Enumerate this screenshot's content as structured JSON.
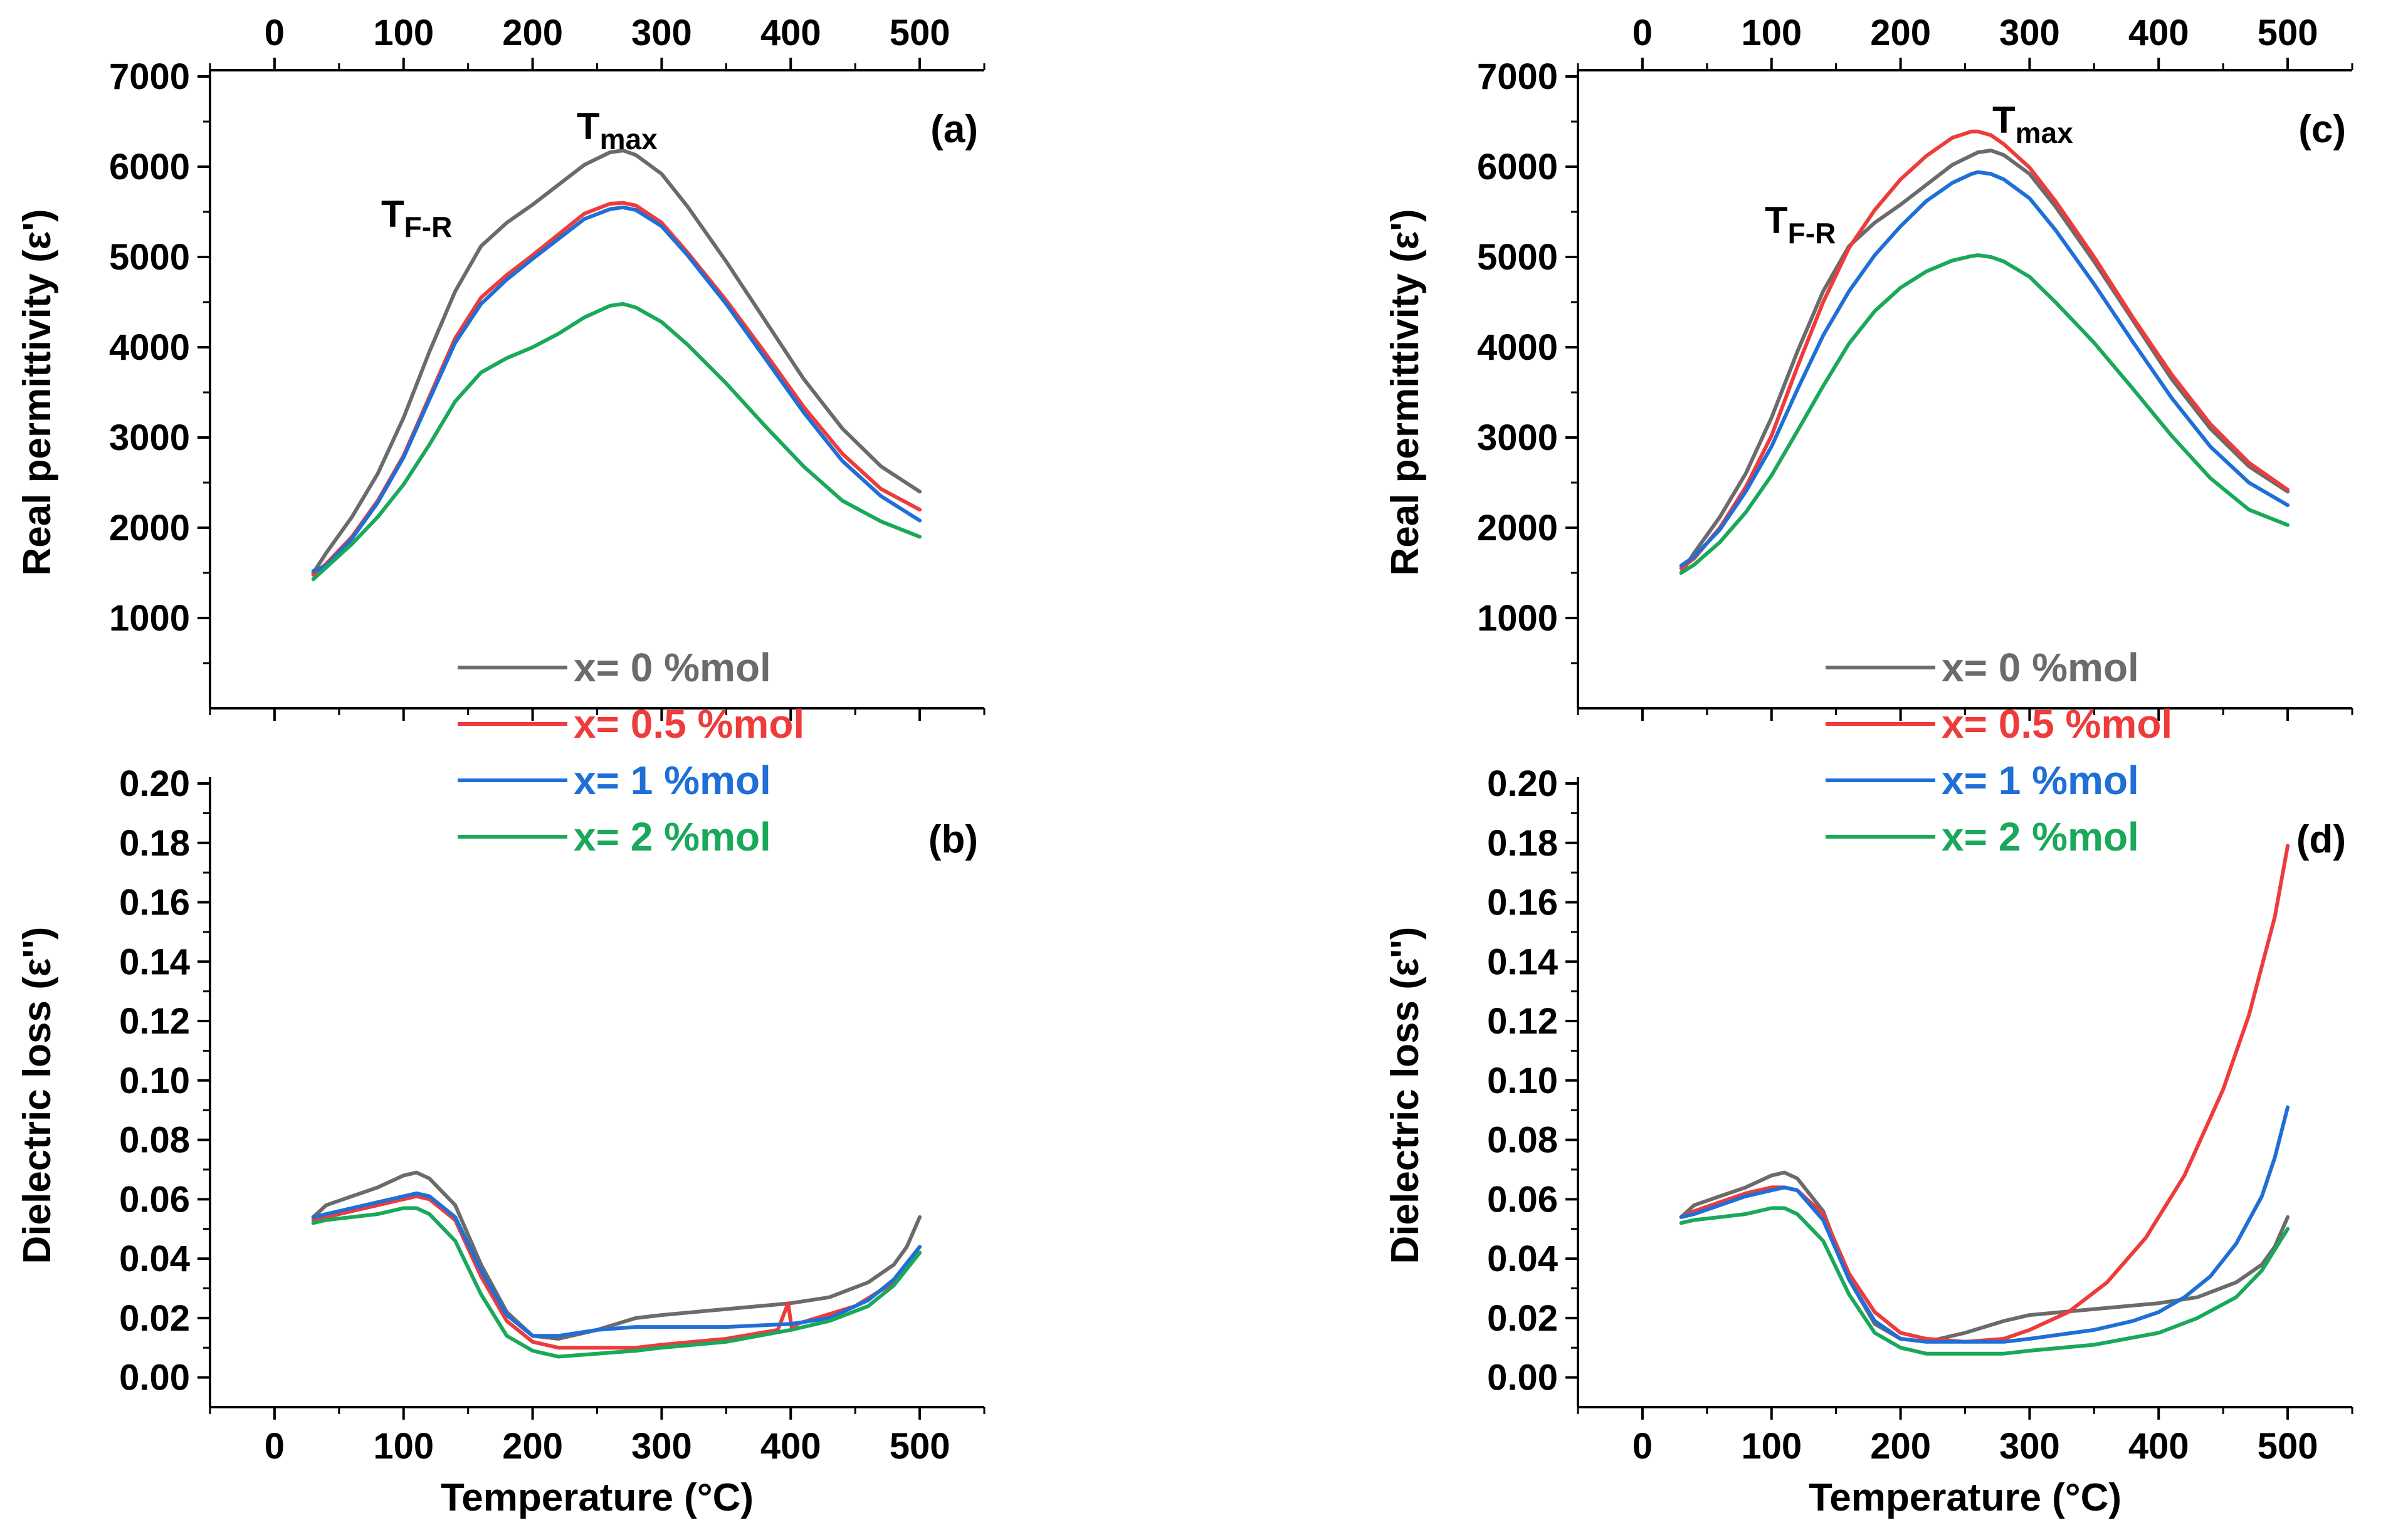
{
  "figure": {
    "colors": {
      "x0": "#6b6b6b",
      "x05": "#ee3b3b",
      "x1": "#1f6fd6",
      "x2": "#1aa85a",
      "axis": "#000000"
    },
    "legend": [
      {
        "label": "x= 0 %mol",
        "color": "#6b6b6b"
      },
      {
        "label": "x= 0.5 %mol",
        "color": "#ee3b3b"
      },
      {
        "label": "x= 1 %mol",
        "color": "#1f6fd6"
      },
      {
        "label": "x= 2 %mol",
        "color": "#1aa85a"
      }
    ],
    "annotations": {
      "tmax_main": "T",
      "tmax_sub": "max",
      "tfr_main": "T",
      "tfr_sub": "F-R"
    }
  },
  "chart_data": [
    {
      "id": "a",
      "type": "line",
      "panel_label": "(a)",
      "xlabel": "",
      "ylabel": "Real permittivity (ε')",
      "xlim": [
        -50,
        550
      ],
      "ylim": [
        0,
        7000
      ],
      "xticks": [
        0,
        100,
        200,
        300,
        400,
        500
      ],
      "top_axis_ticks": [
        0,
        100,
        200,
        300,
        400,
        500
      ],
      "yticks": [
        1000,
        2000,
        3000,
        4000,
        5000,
        6000,
        7000
      ],
      "series": [
        {
          "name": "x= 0 %mol",
          "color": "#6b6b6b",
          "x": [
            30,
            40,
            60,
            80,
            100,
            120,
            140,
            160,
            180,
            200,
            220,
            240,
            260,
            270,
            280,
            300,
            320,
            350,
            380,
            410,
            440,
            470,
            500
          ],
          "y": [
            1500,
            1720,
            2120,
            2600,
            3220,
            3950,
            4620,
            5120,
            5380,
            5580,
            5800,
            6020,
            6160,
            6180,
            6130,
            5920,
            5560,
            4950,
            4300,
            3650,
            3100,
            2680,
            2400
          ]
        },
        {
          "name": "x= 0.5 %mol",
          "color": "#ee3b3b",
          "x": [
            30,
            40,
            60,
            80,
            100,
            120,
            140,
            160,
            180,
            200,
            220,
            240,
            260,
            270,
            280,
            300,
            320,
            350,
            380,
            410,
            440,
            470,
            500
          ],
          "y": [
            1480,
            1600,
            1900,
            2300,
            2800,
            3450,
            4100,
            4550,
            4800,
            5020,
            5250,
            5480,
            5590,
            5600,
            5570,
            5380,
            5050,
            4520,
            3940,
            3340,
            2820,
            2430,
            2200
          ]
        },
        {
          "name": "x= 1 %mol",
          "color": "#1f6fd6",
          "x": [
            30,
            40,
            60,
            80,
            100,
            120,
            140,
            160,
            180,
            200,
            220,
            240,
            260,
            270,
            280,
            300,
            320,
            350,
            380,
            410,
            440,
            470,
            500
          ],
          "y": [
            1520,
            1580,
            1880,
            2280,
            2780,
            3420,
            4050,
            4480,
            4750,
            4980,
            5200,
            5420,
            5530,
            5550,
            5520,
            5340,
            5020,
            4480,
            3880,
            3280,
            2740,
            2350,
            2080
          ]
        },
        {
          "name": "x= 2 %mol",
          "color": "#1aa85a",
          "x": [
            30,
            40,
            60,
            80,
            100,
            120,
            140,
            160,
            180,
            200,
            220,
            240,
            260,
            270,
            280,
            300,
            320,
            350,
            380,
            410,
            440,
            470,
            500
          ],
          "y": [
            1430,
            1560,
            1820,
            2120,
            2480,
            2920,
            3400,
            3720,
            3880,
            4000,
            4150,
            4330,
            4460,
            4480,
            4440,
            4280,
            4030,
            3600,
            3130,
            2680,
            2300,
            2070,
            1900
          ]
        }
      ]
    },
    {
      "id": "b",
      "type": "line",
      "panel_label": "(b)",
      "xlabel": "Temperature (°C)",
      "ylabel": "Dielectric loss (ε'')",
      "xlim": [
        -50,
        550
      ],
      "ylim": [
        -0.01,
        0.2
      ],
      "xticks": [
        0,
        100,
        200,
        300,
        400,
        500
      ],
      "yticks": [
        0.0,
        0.02,
        0.04,
        0.06,
        0.08,
        0.1,
        0.12,
        0.14,
        0.16,
        0.18,
        0.2
      ],
      "series": [
        {
          "name": "x= 0 %mol",
          "color": "#6b6b6b",
          "x": [
            30,
            40,
            60,
            80,
            100,
            110,
            120,
            140,
            160,
            180,
            200,
            220,
            250,
            280,
            300,
            350,
            400,
            430,
            460,
            480,
            490,
            500
          ],
          "y": [
            0.054,
            0.058,
            0.061,
            0.064,
            0.068,
            0.069,
            0.067,
            0.058,
            0.038,
            0.022,
            0.014,
            0.013,
            0.016,
            0.02,
            0.021,
            0.023,
            0.025,
            0.027,
            0.032,
            0.038,
            0.044,
            0.054
          ]
        },
        {
          "name": "x= 0.5 %mol",
          "color": "#ee3b3b",
          "x": [
            30,
            40,
            60,
            80,
            100,
            110,
            120,
            140,
            160,
            180,
            200,
            220,
            250,
            280,
            300,
            350,
            390,
            398,
            401,
            405,
            420,
            450,
            480,
            500
          ],
          "y": [
            0.053,
            0.054,
            0.056,
            0.058,
            0.06,
            0.061,
            0.06,
            0.053,
            0.034,
            0.019,
            0.012,
            0.01,
            0.01,
            0.01,
            0.011,
            0.013,
            0.016,
            0.025,
            0.016,
            0.018,
            0.02,
            0.024,
            0.032,
            0.042
          ]
        },
        {
          "name": "x= 1 %mol",
          "color": "#1f6fd6",
          "x": [
            30,
            40,
            60,
            80,
            100,
            110,
            120,
            140,
            160,
            180,
            200,
            220,
            250,
            280,
            300,
            350,
            400,
            430,
            460,
            480,
            500
          ],
          "y": [
            0.054,
            0.055,
            0.057,
            0.059,
            0.061,
            0.062,
            0.061,
            0.054,
            0.036,
            0.021,
            0.014,
            0.014,
            0.016,
            0.017,
            0.017,
            0.017,
            0.018,
            0.02,
            0.026,
            0.033,
            0.044
          ]
        },
        {
          "name": "x= 2 %mol",
          "color": "#1aa85a",
          "x": [
            30,
            40,
            60,
            80,
            100,
            110,
            120,
            140,
            160,
            180,
            200,
            220,
            250,
            280,
            300,
            350,
            400,
            430,
            460,
            480,
            500
          ],
          "y": [
            0.052,
            0.053,
            0.054,
            0.055,
            0.057,
            0.057,
            0.055,
            0.046,
            0.028,
            0.014,
            0.009,
            0.007,
            0.008,
            0.009,
            0.01,
            0.012,
            0.016,
            0.019,
            0.024,
            0.031,
            0.042
          ]
        }
      ]
    },
    {
      "id": "c",
      "type": "line",
      "panel_label": "(c)",
      "xlabel": "",
      "ylabel": "Real permittivity (ε')",
      "xlim": [
        -50,
        550
      ],
      "ylim": [
        0,
        7000
      ],
      "xticks": [
        0,
        100,
        200,
        300,
        400,
        500
      ],
      "top_axis_ticks": [
        0,
        100,
        200,
        300,
        400,
        500
      ],
      "yticks": [
        1000,
        2000,
        3000,
        4000,
        5000,
        6000,
        7000
      ],
      "series": [
        {
          "name": "x= 0 %mol",
          "color": "#6b6b6b",
          "x": [
            30,
            40,
            60,
            80,
            100,
            120,
            140,
            160,
            180,
            200,
            220,
            240,
            260,
            270,
            280,
            300,
            320,
            350,
            380,
            410,
            440,
            470,
            500
          ],
          "y": [
            1500,
            1720,
            2120,
            2600,
            3220,
            3950,
            4620,
            5120,
            5380,
            5580,
            5800,
            6020,
            6160,
            6180,
            6130,
            5920,
            5560,
            4950,
            4300,
            3650,
            3100,
            2680,
            2400
          ]
        },
        {
          "name": "x= 0.5 %mol",
          "color": "#ee3b3b",
          "x": [
            30,
            40,
            60,
            80,
            100,
            120,
            140,
            160,
            180,
            200,
            220,
            240,
            255,
            260,
            270,
            280,
            300,
            320,
            350,
            380,
            410,
            440,
            470,
            500
          ],
          "y": [
            1550,
            1660,
            2000,
            2450,
            3020,
            3780,
            4500,
            5100,
            5520,
            5860,
            6120,
            6320,
            6390,
            6390,
            6350,
            6250,
            5990,
            5620,
            5000,
            4330,
            3700,
            3150,
            2720,
            2420
          ]
        },
        {
          "name": "x= 1 %mol",
          "color": "#1f6fd6",
          "x": [
            30,
            40,
            60,
            80,
            100,
            120,
            140,
            160,
            180,
            200,
            220,
            240,
            255,
            260,
            270,
            280,
            300,
            320,
            350,
            380,
            410,
            440,
            470,
            500
          ],
          "y": [
            1580,
            1680,
            1980,
            2400,
            2900,
            3530,
            4130,
            4620,
            5020,
            5340,
            5620,
            5820,
            5920,
            5940,
            5920,
            5860,
            5650,
            5300,
            4700,
            4060,
            3440,
            2900,
            2500,
            2250
          ]
        },
        {
          "name": "x= 2 %mol",
          "color": "#1aa85a",
          "x": [
            30,
            40,
            60,
            80,
            100,
            120,
            140,
            160,
            180,
            200,
            220,
            240,
            255,
            260,
            270,
            280,
            300,
            320,
            350,
            380,
            410,
            440,
            470,
            500
          ],
          "y": [
            1500,
            1590,
            1840,
            2170,
            2580,
            3070,
            3570,
            4040,
            4400,
            4660,
            4840,
            4960,
            5010,
            5020,
            5000,
            4950,
            4780,
            4500,
            4050,
            3540,
            3020,
            2550,
            2200,
            2030
          ]
        }
      ]
    },
    {
      "id": "d",
      "type": "line",
      "panel_label": "(d)",
      "xlabel": "Temperature (°C)",
      "ylabel": "Dielectric loss (ε'')",
      "xlim": [
        -50,
        550
      ],
      "ylim": [
        -0.01,
        0.2
      ],
      "xticks": [
        0,
        100,
        200,
        300,
        400,
        500
      ],
      "yticks": [
        0.0,
        0.02,
        0.04,
        0.06,
        0.08,
        0.1,
        0.12,
        0.14,
        0.16,
        0.18,
        0.2
      ],
      "series": [
        {
          "name": "x= 0 %mol",
          "color": "#6b6b6b",
          "x": [
            30,
            40,
            60,
            80,
            100,
            110,
            120,
            140,
            160,
            180,
            200,
            220,
            250,
            280,
            300,
            350,
            400,
            430,
            460,
            480,
            490,
            500
          ],
          "y": [
            0.054,
            0.058,
            0.061,
            0.064,
            0.068,
            0.069,
            0.067,
            0.056,
            0.033,
            0.018,
            0.013,
            0.012,
            0.015,
            0.019,
            0.021,
            0.023,
            0.025,
            0.027,
            0.032,
            0.038,
            0.044,
            0.054
          ]
        },
        {
          "name": "x= 0.5 %mol",
          "color": "#ee3b3b",
          "x": [
            30,
            40,
            60,
            80,
            100,
            110,
            120,
            140,
            160,
            180,
            200,
            220,
            250,
            280,
            300,
            330,
            360,
            390,
            420,
            450,
            470,
            490,
            500
          ],
          "y": [
            0.054,
            0.056,
            0.059,
            0.062,
            0.064,
            0.064,
            0.063,
            0.055,
            0.035,
            0.022,
            0.015,
            0.013,
            0.012,
            0.013,
            0.016,
            0.022,
            0.032,
            0.047,
            0.068,
            0.097,
            0.122,
            0.155,
            0.179
          ]
        },
        {
          "name": "x= 1 %mol",
          "color": "#1f6fd6",
          "x": [
            30,
            40,
            60,
            80,
            100,
            110,
            120,
            140,
            160,
            180,
            200,
            220,
            250,
            280,
            300,
            350,
            380,
            400,
            420,
            440,
            460,
            480,
            490,
            500
          ],
          "y": [
            0.054,
            0.055,
            0.058,
            0.061,
            0.063,
            0.064,
            0.063,
            0.053,
            0.033,
            0.019,
            0.013,
            0.012,
            0.012,
            0.012,
            0.013,
            0.016,
            0.019,
            0.022,
            0.027,
            0.034,
            0.045,
            0.061,
            0.074,
            0.091
          ]
        },
        {
          "name": "x= 2 %mol",
          "color": "#1aa85a",
          "x": [
            30,
            40,
            60,
            80,
            100,
            110,
            120,
            140,
            160,
            180,
            200,
            220,
            250,
            280,
            300,
            350,
            400,
            430,
            460,
            480,
            500
          ],
          "y": [
            0.052,
            0.053,
            0.054,
            0.055,
            0.057,
            0.057,
            0.055,
            0.046,
            0.028,
            0.015,
            0.01,
            0.008,
            0.008,
            0.008,
            0.009,
            0.011,
            0.015,
            0.02,
            0.027,
            0.036,
            0.05
          ]
        }
      ]
    }
  ]
}
